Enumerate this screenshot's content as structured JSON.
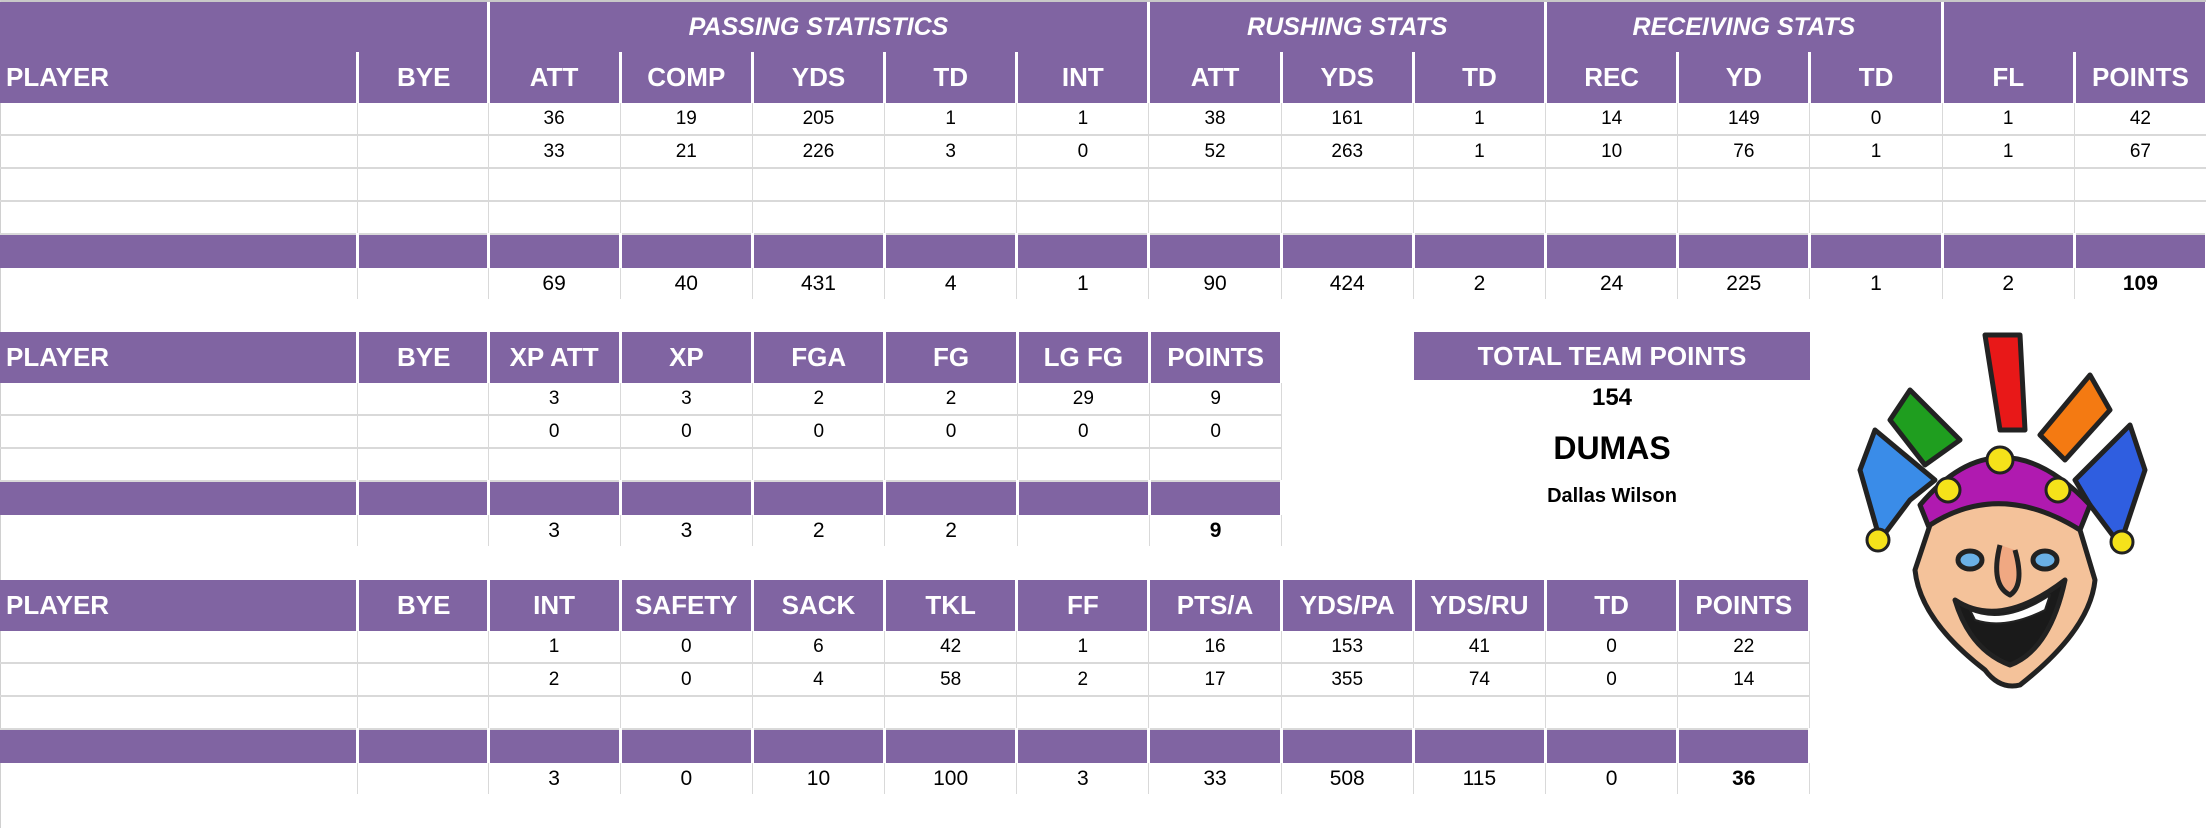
{
  "colors": {
    "header": "#8064A2",
    "header_text": "#FFFFFF",
    "grid": "#D9D9D9"
  },
  "offense": {
    "groups": [
      {
        "label": ""
      },
      {
        "label": "PASSING STATISTICS"
      },
      {
        "label": "RUSHING STATS"
      },
      {
        "label": "RECEIVING STATS"
      },
      {
        "label": ""
      }
    ],
    "columns": [
      "PLAYER",
      "BYE",
      "ATT",
      "COMP",
      "YDS",
      "TD",
      "INT",
      "ATT",
      "YDS",
      "TD",
      "REC",
      "YD",
      "TD",
      "FL",
      "POINTS"
    ],
    "rows": [
      [
        "",
        "",
        "36",
        "19",
        "205",
        "1",
        "1",
        "38",
        "161",
        "1",
        "14",
        "149",
        "0",
        "1",
        "42"
      ],
      [
        "",
        "",
        "33",
        "21",
        "226",
        "3",
        "0",
        "52",
        "263",
        "1",
        "10",
        "76",
        "1",
        "1",
        "67"
      ],
      [
        "",
        "",
        "",
        "",
        "",
        "",
        "",
        "",
        "",
        "",
        "",
        "",
        "",
        "",
        ""
      ],
      [
        "",
        "",
        "",
        "",
        "",
        "",
        "",
        "",
        "",
        "",
        "",
        "",
        "",
        "",
        ""
      ]
    ],
    "totals": [
      "",
      "",
      "69",
      "40",
      "431",
      "4",
      "1",
      "90",
      "424",
      "2",
      "24",
      "225",
      "1",
      "2",
      "109"
    ]
  },
  "kicking": {
    "columns": [
      "PLAYER",
      "BYE",
      "XP ATT",
      "XP",
      "FGA",
      "FG",
      "LG FG",
      "POINTS"
    ],
    "rows": [
      [
        "",
        "",
        "3",
        "3",
        "2",
        "2",
        "29",
        "9"
      ],
      [
        "",
        "",
        "0",
        "0",
        "0",
        "0",
        "0",
        "0"
      ],
      [
        "",
        "",
        "",
        "",
        "",
        "",
        "",
        ""
      ]
    ],
    "totals": [
      "",
      "",
      "3",
      "3",
      "2",
      "2",
      "",
      "9"
    ]
  },
  "defense": {
    "columns": [
      "PLAYER",
      "BYE",
      "INT",
      "SAFETY",
      "SACK",
      "TKL",
      "FF",
      "PTS/A",
      "YDS/PA",
      "YDS/RU",
      "TD",
      "POINTS"
    ],
    "rows": [
      [
        "",
        "",
        "1",
        "0",
        "6",
        "42",
        "1",
        "16",
        "153",
        "41",
        "0",
        "22"
      ],
      [
        "",
        "",
        "2",
        "0",
        "4",
        "58",
        "2",
        "17",
        "355",
        "74",
        "0",
        "14"
      ],
      [
        "",
        "",
        "",
        "",
        "",
        "",
        "",
        "",
        "",
        "",
        "",
        ""
      ]
    ],
    "totals": [
      "",
      "",
      "3",
      "0",
      "10",
      "100",
      "3",
      "33",
      "508",
      "115",
      "0",
      "36"
    ]
  },
  "summary": {
    "label": "TOTAL TEAM POINTS",
    "value": "154",
    "team": "DUMAS",
    "owner": "Dallas Wilson"
  },
  "logo": {
    "icon": "jester-mascot-icon"
  }
}
